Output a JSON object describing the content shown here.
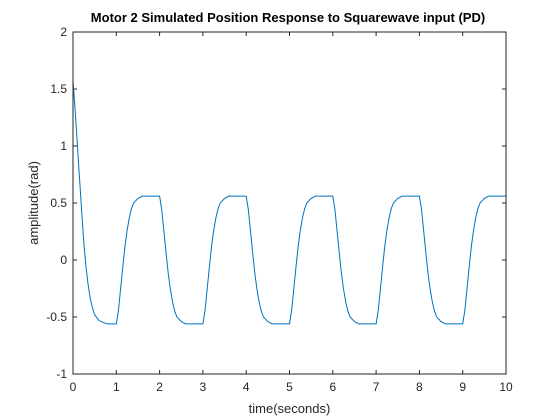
{
  "chart_data": {
    "type": "line",
    "title": "Motor 2 Simulated Position Response to Squarewave input (PD)",
    "xlabel": "time(seconds)",
    "ylabel": "amplitude(rad)",
    "xlim": [
      0,
      10
    ],
    "ylim": [
      -1,
      2
    ],
    "xticks": [
      "0",
      "1",
      "2",
      "3",
      "4",
      "5",
      "6",
      "7",
      "8",
      "9",
      "10"
    ],
    "yticks": [
      "-1",
      "-0.5",
      "0",
      "0.5",
      "1",
      "1.5",
      "2"
    ],
    "grid": false,
    "legend": "none",
    "series": [
      {
        "color": "#0072BD",
        "points": [
          [
            0.0,
            1.57
          ],
          [
            0.05,
            1.31
          ],
          [
            0.1,
            1.02
          ],
          [
            0.15,
            0.72
          ],
          [
            0.2,
            0.43
          ],
          [
            0.25,
            0.15
          ],
          [
            0.3,
            -0.06
          ],
          [
            0.35,
            -0.22
          ],
          [
            0.4,
            -0.34
          ],
          [
            0.45,
            -0.42
          ],
          [
            0.5,
            -0.48
          ],
          [
            0.6,
            -0.53
          ],
          [
            0.7,
            -0.55
          ],
          [
            0.8,
            -0.56
          ],
          [
            1.0,
            -0.56
          ],
          [
            1.05,
            -0.44
          ],
          [
            1.1,
            -0.25
          ],
          [
            1.15,
            -0.06
          ],
          [
            1.2,
            0.12
          ],
          [
            1.25,
            0.26
          ],
          [
            1.3,
            0.37
          ],
          [
            1.35,
            0.45
          ],
          [
            1.4,
            0.5
          ],
          [
            1.5,
            0.54
          ],
          [
            1.6,
            0.56
          ],
          [
            1.75,
            0.56
          ],
          [
            2.0,
            0.56
          ],
          [
            2.05,
            0.44
          ],
          [
            2.1,
            0.25
          ],
          [
            2.15,
            0.06
          ],
          [
            2.2,
            -0.12
          ],
          [
            2.25,
            -0.26
          ],
          [
            2.3,
            -0.37
          ],
          [
            2.35,
            -0.45
          ],
          [
            2.4,
            -0.5
          ],
          [
            2.5,
            -0.54
          ],
          [
            2.6,
            -0.56
          ],
          [
            2.75,
            -0.56
          ],
          [
            3.0,
            -0.56
          ],
          [
            3.05,
            -0.44
          ],
          [
            3.1,
            -0.25
          ],
          [
            3.15,
            -0.06
          ],
          [
            3.2,
            0.12
          ],
          [
            3.25,
            0.26
          ],
          [
            3.3,
            0.37
          ],
          [
            3.35,
            0.45
          ],
          [
            3.4,
            0.5
          ],
          [
            3.5,
            0.54
          ],
          [
            3.6,
            0.56
          ],
          [
            3.75,
            0.56
          ],
          [
            4.0,
            0.56
          ],
          [
            4.05,
            0.44
          ],
          [
            4.1,
            0.25
          ],
          [
            4.15,
            0.06
          ],
          [
            4.2,
            -0.12
          ],
          [
            4.25,
            -0.26
          ],
          [
            4.3,
            -0.37
          ],
          [
            4.35,
            -0.45
          ],
          [
            4.4,
            -0.5
          ],
          [
            4.5,
            -0.54
          ],
          [
            4.6,
            -0.56
          ],
          [
            4.75,
            -0.56
          ],
          [
            5.0,
            -0.56
          ],
          [
            5.05,
            -0.44
          ],
          [
            5.1,
            -0.25
          ],
          [
            5.15,
            -0.06
          ],
          [
            5.2,
            0.12
          ],
          [
            5.25,
            0.26
          ],
          [
            5.3,
            0.37
          ],
          [
            5.35,
            0.45
          ],
          [
            5.4,
            0.5
          ],
          [
            5.5,
            0.54
          ],
          [
            5.6,
            0.56
          ],
          [
            5.75,
            0.56
          ],
          [
            6.0,
            0.56
          ],
          [
            6.05,
            0.44
          ],
          [
            6.1,
            0.25
          ],
          [
            6.15,
            0.06
          ],
          [
            6.2,
            -0.12
          ],
          [
            6.25,
            -0.26
          ],
          [
            6.3,
            -0.37
          ],
          [
            6.35,
            -0.45
          ],
          [
            6.4,
            -0.5
          ],
          [
            6.5,
            -0.54
          ],
          [
            6.6,
            -0.56
          ],
          [
            6.75,
            -0.56
          ],
          [
            7.0,
            -0.56
          ],
          [
            7.05,
            -0.44
          ],
          [
            7.1,
            -0.25
          ],
          [
            7.15,
            -0.06
          ],
          [
            7.2,
            0.12
          ],
          [
            7.25,
            0.26
          ],
          [
            7.3,
            0.37
          ],
          [
            7.35,
            0.45
          ],
          [
            7.4,
            0.5
          ],
          [
            7.5,
            0.54
          ],
          [
            7.6,
            0.56
          ],
          [
            7.75,
            0.56
          ],
          [
            8.0,
            0.56
          ],
          [
            8.05,
            0.44
          ],
          [
            8.1,
            0.25
          ],
          [
            8.15,
            0.06
          ],
          [
            8.2,
            -0.12
          ],
          [
            8.25,
            -0.26
          ],
          [
            8.3,
            -0.37
          ],
          [
            8.35,
            -0.45
          ],
          [
            8.4,
            -0.5
          ],
          [
            8.5,
            -0.54
          ],
          [
            8.6,
            -0.56
          ],
          [
            8.75,
            -0.56
          ],
          [
            9.0,
            -0.56
          ],
          [
            9.05,
            -0.44
          ],
          [
            9.1,
            -0.25
          ],
          [
            9.15,
            -0.06
          ],
          [
            9.2,
            0.12
          ],
          [
            9.25,
            0.26
          ],
          [
            9.3,
            0.37
          ],
          [
            9.35,
            0.45
          ],
          [
            9.4,
            0.5
          ],
          [
            9.5,
            0.54
          ],
          [
            9.6,
            0.56
          ],
          [
            9.75,
            0.56
          ],
          [
            10.0,
            0.56
          ]
        ]
      }
    ]
  }
}
